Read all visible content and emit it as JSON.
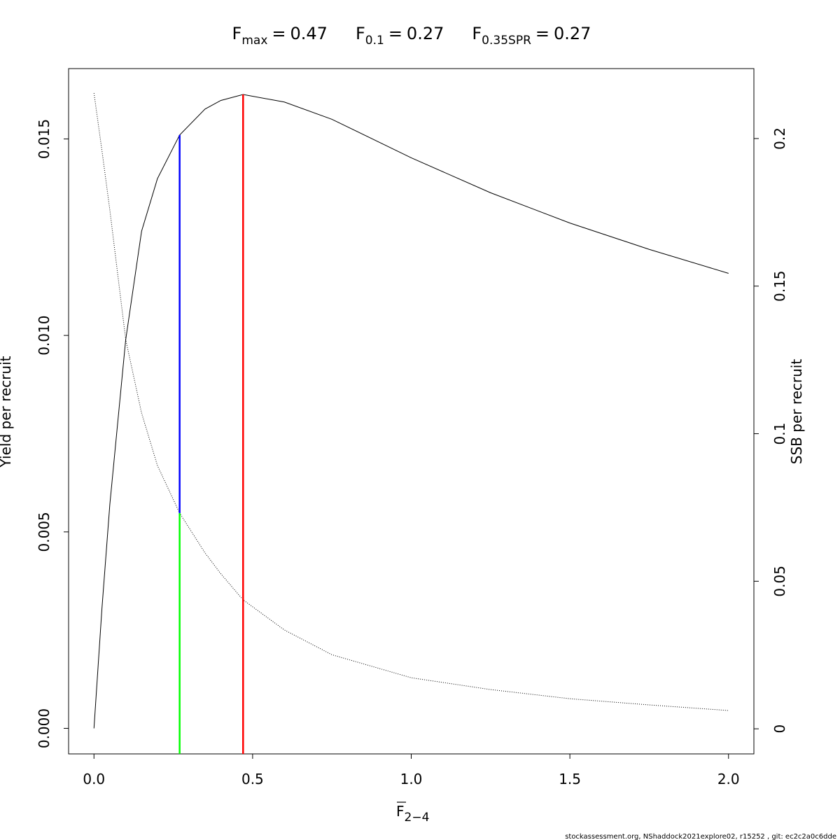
{
  "chart_data": {
    "type": "line",
    "reference_points": [
      {
        "label": "F",
        "subscript": "max",
        "relation": "=",
        "value": 0.47,
        "color": "#ff0000"
      },
      {
        "label": "F",
        "subscript": "0.1",
        "relation": "=",
        "value": 0.27,
        "color": "#0000ff"
      },
      {
        "label": "F",
        "subscript": "0.35SPR",
        "relation": "=",
        "value": 0.27,
        "color": "#00ff00"
      }
    ],
    "xlabel": {
      "text": "F",
      "subscript": "2−4"
    },
    "ylabel": "Yield per recruit",
    "y2label": "SSB per recruit",
    "footer": "stockassessment.org, NShaddock2021explore02, r15252 , git: ec2c2a0c6dde",
    "x": [
      0,
      0.025,
      0.05,
      0.1,
      0.15,
      0.2,
      0.27,
      0.35,
      0.4,
      0.47,
      0.6,
      0.75,
      1.0,
      1.25,
      1.5,
      1.75,
      2.0
    ],
    "series": [
      {
        "color": "#000000",
        "linestyle": "solid",
        "values": [
          0,
          0.00304,
          0.0057,
          0.00989,
          0.01265,
          0.01399,
          0.0151,
          0.01576,
          0.01598,
          0.01613,
          0.01594,
          0.0155,
          0.01452,
          0.01363,
          0.01286,
          0.01219,
          0.01158
        ]
      },
      {
        "color": "#000000",
        "linestyle": "dotted",
        "axis": "y2",
        "values": [
          0.2154,
          0.196,
          0.1758,
          0.1319,
          0.107,
          0.0892,
          0.0731,
          0.0596,
          0.0525,
          0.0437,
          0.0335,
          0.0251,
          0.0173,
          0.0133,
          0.0102,
          0.0081,
          0.0062
        ]
      }
    ],
    "xlim": [
      -0.08,
      2.08
    ],
    "xticks": [
      {
        "value": 0,
        "label": "0.0"
      },
      {
        "value": 0.5,
        "label": "0.5"
      },
      {
        "value": 1,
        "label": "1.0"
      },
      {
        "value": 1.5,
        "label": "1.5"
      },
      {
        "value": 2,
        "label": "2.0"
      }
    ],
    "ylim": [
      -0.00065,
      0.01679
    ],
    "yticks": [
      {
        "value": 0,
        "label": "0.000"
      },
      {
        "value": 0.005,
        "label": "0.005"
      },
      {
        "value": 0.01,
        "label": "0.010"
      },
      {
        "value": 0.015,
        "label": "0.015"
      }
    ],
    "y2lim": [
      -0.0085,
      0.2237
    ],
    "y2ticks": [
      0,
      0.05,
      0.1,
      0.15,
      0.2
    ]
  }
}
